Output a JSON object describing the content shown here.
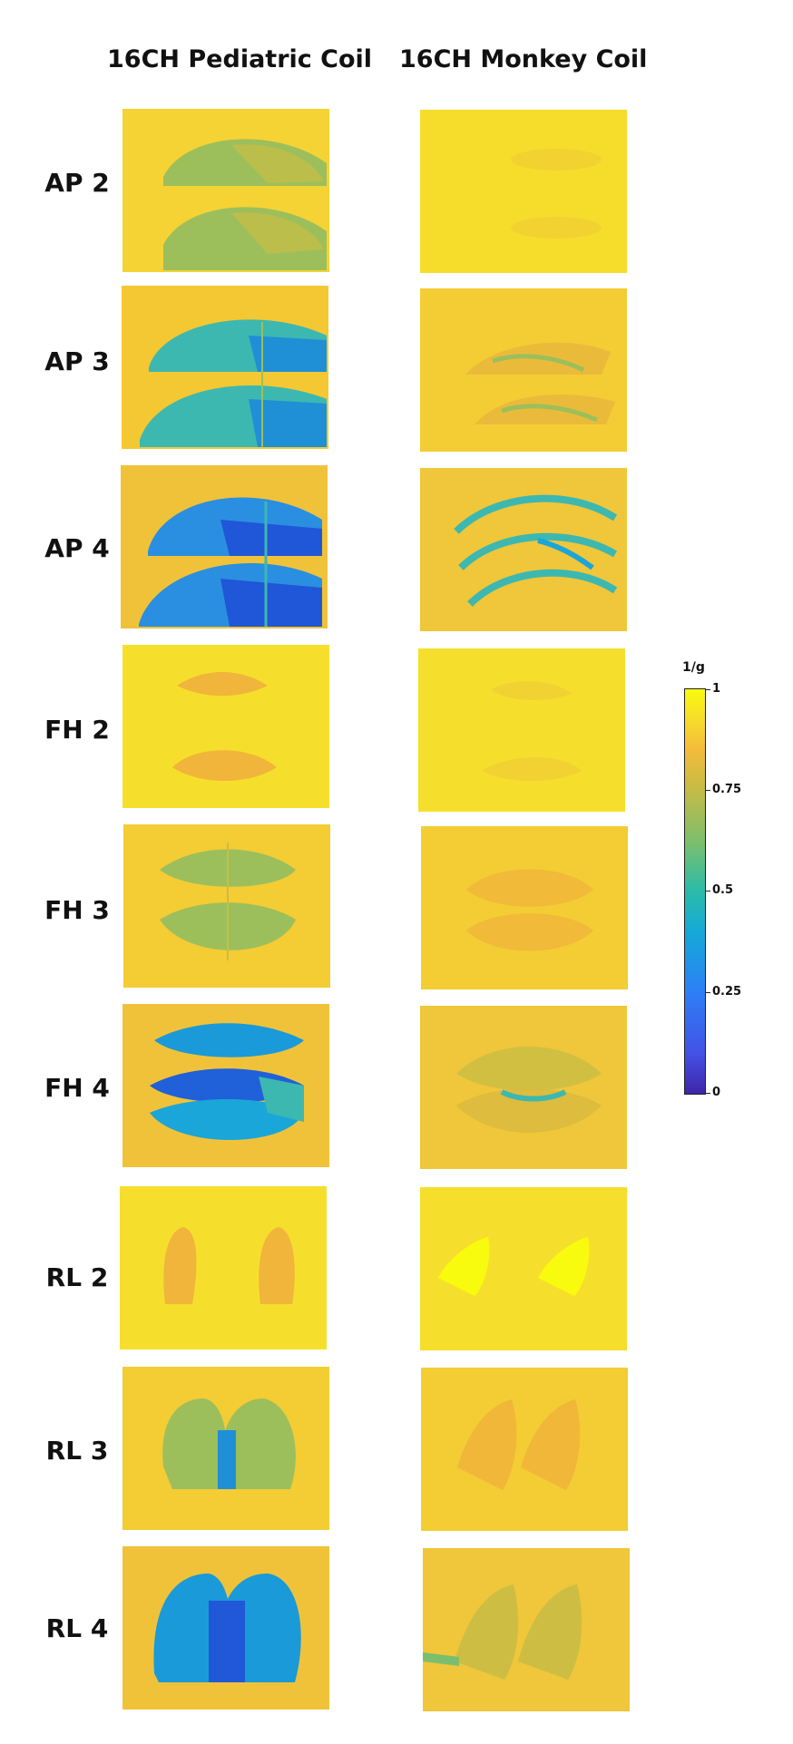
{
  "columns": [
    {
      "title": "16CH Pediatric Coil"
    },
    {
      "title": "16CH Monkey Coil"
    }
  ],
  "rows": [
    {
      "label": "AP 2"
    },
    {
      "label": "AP 3"
    },
    {
      "label": "AP 4"
    },
    {
      "label": "FH 2"
    },
    {
      "label": "FH 3"
    },
    {
      "label": "FH 4"
    },
    {
      "label": "RL 2"
    },
    {
      "label": "RL 3"
    },
    {
      "label": "RL 4"
    }
  ],
  "colorbar": {
    "title": "1/g",
    "ticks": [
      "1",
      "0.75",
      "0.5",
      "0.25",
      "0"
    ],
    "colormap": "parula",
    "range": [
      0,
      1
    ]
  },
  "colors": {
    "background": "#f4c832",
    "bright": "#f9fb0e",
    "orange": "#f0b33b",
    "green": "#9cbf5c",
    "teal": "#3cb8b0",
    "cyan": "#1aa6d8",
    "blue": "#2b6fe6"
  }
}
